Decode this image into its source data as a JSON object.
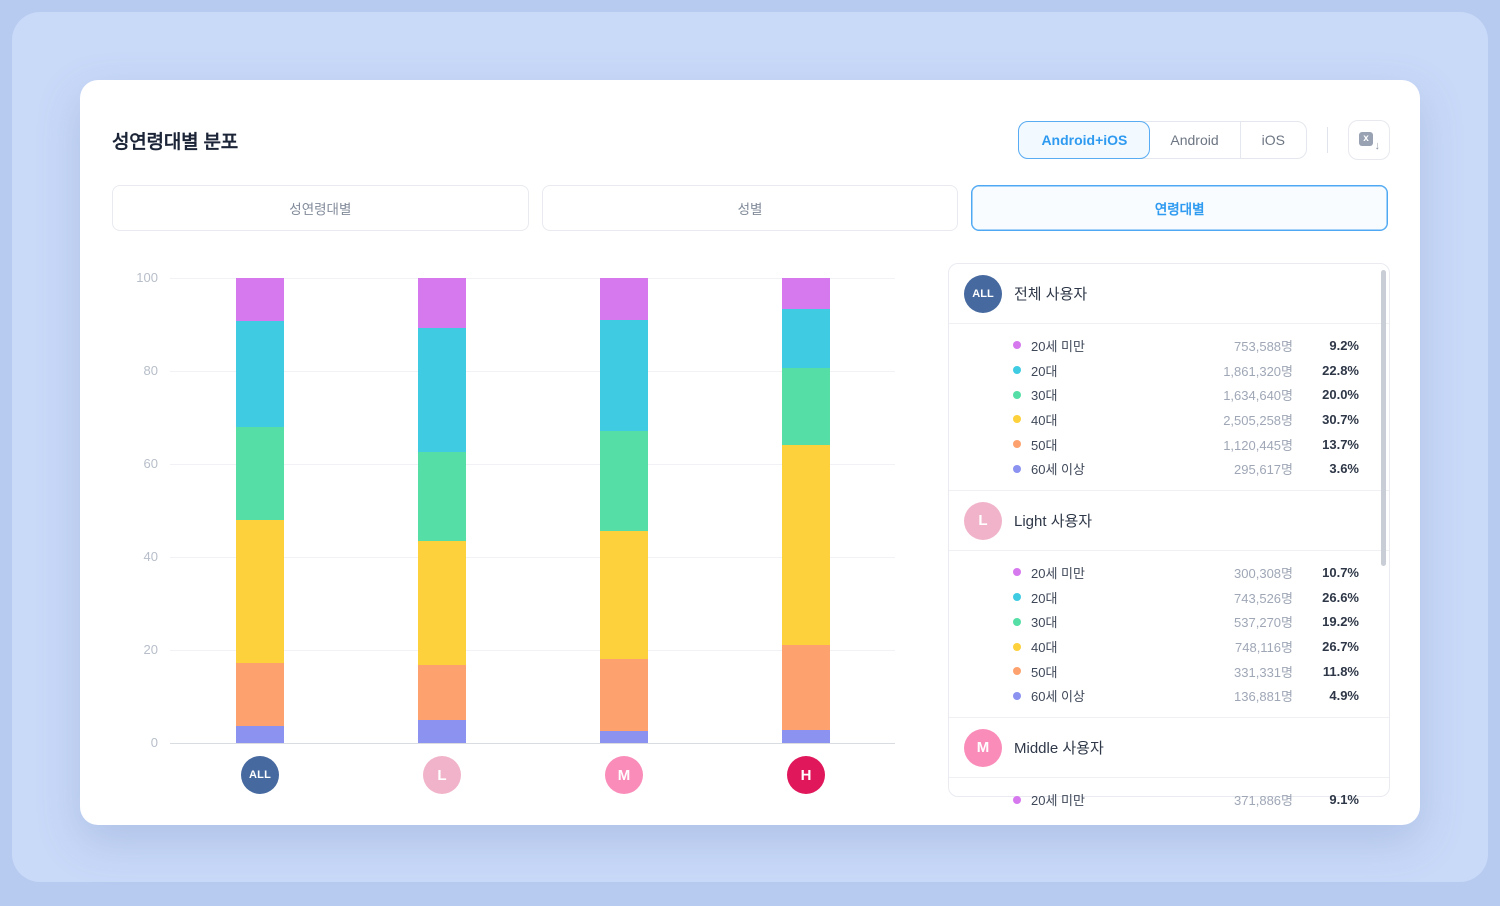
{
  "header": {
    "title": "성연령대별 분포",
    "platform_tabs": [
      {
        "label": "Android+iOS",
        "selected": true
      },
      {
        "label": "Android",
        "selected": false
      },
      {
        "label": "iOS",
        "selected": false
      }
    ]
  },
  "view_tabs": [
    {
      "label": "성연령대별",
      "selected": false
    },
    {
      "label": "성별",
      "selected": false
    },
    {
      "label": "연령대별",
      "selected": true
    }
  ],
  "chart_data": {
    "type": "bar",
    "stacked": true,
    "title": "",
    "xlabel": "",
    "ylabel": "",
    "ylim": [
      0,
      100
    ],
    "yticks": [
      0,
      20,
      40,
      60,
      80,
      100
    ],
    "grid": true,
    "legend": "right-panel",
    "categories": [
      "ALL",
      "L",
      "M",
      "H"
    ],
    "badges": [
      {
        "label": "ALL",
        "color": "#46699f"
      },
      {
        "label": "L",
        "color": "#f1b3c9"
      },
      {
        "label": "M",
        "color": "#fa8cba"
      },
      {
        "label": "H",
        "color": "#e0175a"
      }
    ],
    "series": [
      {
        "name": "20세 미만",
        "color": "#d678ee",
        "values": [
          9.2,
          10.7,
          9.1,
          6.7
        ]
      },
      {
        "name": "20대",
        "color": "#3fcce2",
        "values": [
          22.8,
          26.6,
          23.7,
          12.6
        ]
      },
      {
        "name": "30대",
        "color": "#55dfa6",
        "values": [
          20.0,
          19.2,
          21.5,
          16.6
        ]
      },
      {
        "name": "40대",
        "color": "#fdd13b",
        "values": [
          30.7,
          26.7,
          27.7,
          43.1
        ]
      },
      {
        "name": "50대",
        "color": "#fda26f",
        "values": [
          13.7,
          11.8,
          15.5,
          18.2
        ]
      },
      {
        "name": "60세 이상",
        "color": "#8b92f0",
        "values": [
          3.6,
          4.9,
          2.5,
          2.8
        ]
      }
    ]
  },
  "panel": {
    "sections": [
      {
        "badge": "ALL",
        "badge_color": "#46699f",
        "title": "전체 사용자",
        "rows": [
          {
            "label": "20세 미만",
            "count": "753,588명",
            "percent": "9.2%"
          },
          {
            "label": "20대",
            "count": "1,861,320명",
            "percent": "22.8%"
          },
          {
            "label": "30대",
            "count": "1,634,640명",
            "percent": "20.0%"
          },
          {
            "label": "40대",
            "count": "2,505,258명",
            "percent": "30.7%"
          },
          {
            "label": "50대",
            "count": "1,120,445명",
            "percent": "13.7%"
          },
          {
            "label": "60세 이상",
            "count": "295,617명",
            "percent": "3.6%"
          }
        ]
      },
      {
        "badge": "L",
        "badge_color": "#f1b3c9",
        "title": "Light 사용자",
        "rows": [
          {
            "label": "20세 미만",
            "count": "300,308명",
            "percent": "10.7%"
          },
          {
            "label": "20대",
            "count": "743,526명",
            "percent": "26.6%"
          },
          {
            "label": "30대",
            "count": "537,270명",
            "percent": "19.2%"
          },
          {
            "label": "40대",
            "count": "748,116명",
            "percent": "26.7%"
          },
          {
            "label": "50대",
            "count": "331,331명",
            "percent": "11.8%"
          },
          {
            "label": "60세 이상",
            "count": "136,881명",
            "percent": "4.9%"
          }
        ]
      },
      {
        "badge": "M",
        "badge_color": "#fa8cba",
        "title": "Middle 사용자",
        "rows": [
          {
            "label": "20세 미만",
            "count": "371,886명",
            "percent": "9.1%"
          }
        ]
      }
    ]
  }
}
